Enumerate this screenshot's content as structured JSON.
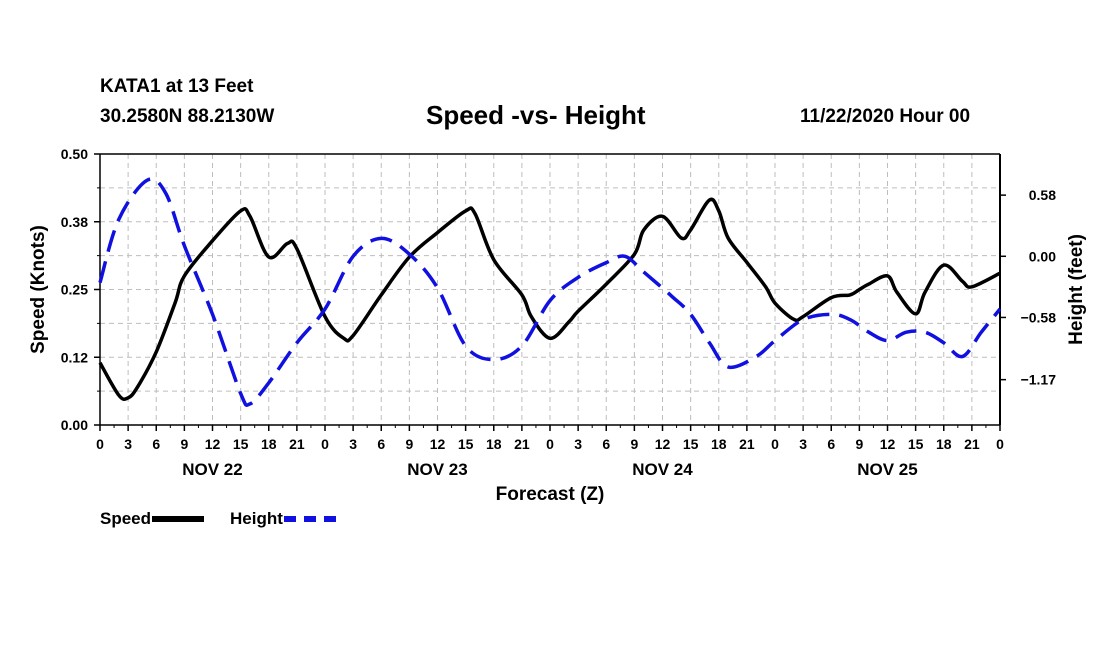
{
  "header": {
    "station": "KATA1 at 13 Feet",
    "coords": "30.2580N 88.2130W",
    "title": "Speed -vs- Height",
    "run_time": "11/22/2020 Hour 00"
  },
  "colors": {
    "speed": "#000000",
    "height": "#1010e0",
    "grid": "#bdbdbd"
  },
  "chart_data": {
    "type": "line",
    "title": "Speed -vs- Height",
    "xlabel": "Forecast (Z)",
    "ylabel": "Speed (Knots)",
    "y2label": "Height (feet)",
    "x_hour_range": [
      0,
      96
    ],
    "ylim": [
      0,
      0.5
    ],
    "y2lim": [
      -1.6,
      0.97
    ],
    "y_ticks": [
      "0.00",
      "0.12",
      "0.25",
      "0.38",
      "0.50"
    ],
    "y_tick_values": [
      0,
      0.125,
      0.25,
      0.375,
      0.5
    ],
    "y2_ticks": [
      "0.58",
      "0.00",
      "−0.58",
      "−1.17"
    ],
    "y2_tick_values": [
      0.58,
      0.0,
      -0.58,
      -1.17
    ],
    "x_tick_labels": [
      "0",
      "3",
      "6",
      "9",
      "12",
      "15",
      "18",
      "21",
      "0",
      "3",
      "6",
      "9",
      "12",
      "15",
      "18",
      "21",
      "0",
      "3",
      "6",
      "9",
      "12",
      "15",
      "18",
      "21",
      "0",
      "3",
      "6",
      "9",
      "12",
      "15",
      "18",
      "21",
      "0"
    ],
    "x_tick_hours": [
      0,
      3,
      6,
      9,
      12,
      15,
      18,
      21,
      24,
      27,
      30,
      33,
      36,
      39,
      42,
      45,
      48,
      51,
      54,
      57,
      60,
      63,
      66,
      69,
      72,
      75,
      78,
      81,
      84,
      87,
      90,
      93,
      96
    ],
    "day_labels": [
      "NOV 22",
      "NOV 23",
      "NOV 24",
      "NOV 25"
    ],
    "day_label_hours": [
      12,
      36,
      60,
      84
    ],
    "grid": true,
    "series": [
      {
        "name": "Speed",
        "axis": "left",
        "style": "solid",
        "hours": [
          0,
          2,
          3,
          4,
          6,
          8,
          9,
          12,
          15,
          16,
          18,
          20,
          21,
          24,
          26,
          27,
          30,
          33,
          36,
          39,
          40,
          42,
          45,
          46,
          48,
          50,
          51,
          54,
          57,
          58,
          60,
          62,
          63,
          65,
          66,
          67,
          69,
          71,
          72,
          74,
          75,
          78,
          80,
          81,
          82,
          84,
          85,
          87,
          88,
          90,
          92,
          93,
          96
        ],
        "values": [
          0.115,
          0.055,
          0.05,
          0.07,
          0.135,
          0.225,
          0.275,
          0.34,
          0.395,
          0.385,
          0.31,
          0.335,
          0.325,
          0.2,
          0.16,
          0.165,
          0.24,
          0.31,
          0.355,
          0.395,
          0.39,
          0.305,
          0.24,
          0.2,
          0.16,
          0.19,
          0.21,
          0.26,
          0.315,
          0.36,
          0.385,
          0.345,
          0.36,
          0.415,
          0.395,
          0.345,
          0.3,
          0.255,
          0.225,
          0.195,
          0.2,
          0.235,
          0.24,
          0.25,
          0.26,
          0.275,
          0.245,
          0.205,
          0.245,
          0.295,
          0.265,
          0.255,
          0.28
        ]
      },
      {
        "name": "Height",
        "axis": "right",
        "style": "dashed",
        "hours": [
          0,
          2,
          5,
          7,
          9,
          12,
          15,
          16,
          18,
          21,
          24,
          27,
          30,
          33,
          36,
          39,
          42,
          45,
          48,
          51,
          54,
          56,
          58,
          61,
          63,
          65,
          67,
          70,
          72,
          75,
          78,
          80,
          82,
          84,
          86,
          88,
          90,
          92,
          94,
          96
        ],
        "values": [
          -0.25,
          0.35,
          0.72,
          0.6,
          0.1,
          -0.55,
          -1.3,
          -1.4,
          -1.2,
          -0.82,
          -0.5,
          0.0,
          0.17,
          0.02,
          -0.3,
          -0.85,
          -0.98,
          -0.85,
          -0.42,
          -0.2,
          -0.06,
          0.0,
          -0.15,
          -0.38,
          -0.55,
          -0.82,
          -1.05,
          -0.95,
          -0.8,
          -0.6,
          -0.55,
          -0.6,
          -0.72,
          -0.8,
          -0.72,
          -0.72,
          -0.82,
          -0.95,
          -0.72,
          -0.5
        ]
      }
    ]
  },
  "legend": {
    "speed_label": "Speed",
    "height_label": "Height"
  }
}
